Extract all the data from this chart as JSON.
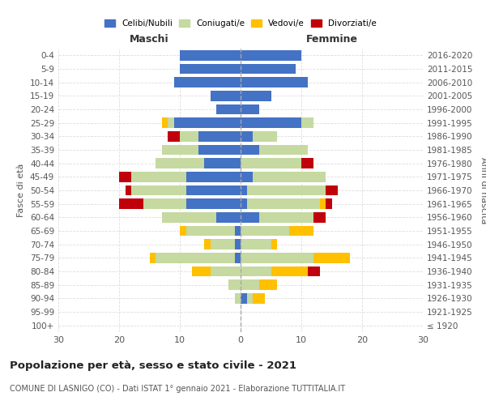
{
  "age_groups": [
    "100+",
    "95-99",
    "90-94",
    "85-89",
    "80-84",
    "75-79",
    "70-74",
    "65-69",
    "60-64",
    "55-59",
    "50-54",
    "45-49",
    "40-44",
    "35-39",
    "30-34",
    "25-29",
    "20-24",
    "15-19",
    "10-14",
    "5-9",
    "0-4"
  ],
  "birth_years": [
    "≤ 1920",
    "1921-1925",
    "1926-1930",
    "1931-1935",
    "1936-1940",
    "1941-1945",
    "1946-1950",
    "1951-1955",
    "1956-1960",
    "1961-1965",
    "1966-1970",
    "1971-1975",
    "1976-1980",
    "1981-1985",
    "1986-1990",
    "1991-1995",
    "1996-2000",
    "2001-2005",
    "2006-2010",
    "2011-2015",
    "2016-2020"
  ],
  "maschi": {
    "celibi": [
      0,
      0,
      0,
      0,
      0,
      1,
      1,
      1,
      4,
      9,
      9,
      9,
      6,
      7,
      7,
      11,
      4,
      5,
      11,
      10,
      10
    ],
    "coniugati": [
      0,
      0,
      1,
      2,
      5,
      13,
      4,
      8,
      9,
      7,
      9,
      9,
      8,
      6,
      3,
      1,
      0,
      0,
      0,
      0,
      0
    ],
    "vedovi": [
      0,
      0,
      0,
      0,
      3,
      1,
      1,
      1,
      0,
      0,
      0,
      0,
      0,
      0,
      0,
      1,
      0,
      0,
      0,
      0,
      0
    ],
    "divorziati": [
      0,
      0,
      0,
      0,
      0,
      0,
      0,
      0,
      0,
      4,
      1,
      2,
      0,
      0,
      2,
      0,
      0,
      0,
      0,
      0,
      0
    ]
  },
  "femmine": {
    "nubili": [
      0,
      0,
      1,
      0,
      0,
      0,
      0,
      0,
      3,
      1,
      1,
      2,
      0,
      3,
      2,
      10,
      3,
      5,
      11,
      9,
      10
    ],
    "coniugate": [
      0,
      0,
      1,
      3,
      5,
      12,
      5,
      8,
      9,
      12,
      13,
      12,
      10,
      8,
      4,
      2,
      0,
      0,
      0,
      0,
      0
    ],
    "vedove": [
      0,
      0,
      2,
      3,
      6,
      6,
      1,
      4,
      0,
      1,
      0,
      0,
      0,
      0,
      0,
      0,
      0,
      0,
      0,
      0,
      0
    ],
    "divorziate": [
      0,
      0,
      0,
      0,
      2,
      0,
      0,
      0,
      2,
      1,
      2,
      0,
      2,
      0,
      0,
      0,
      0,
      0,
      0,
      0,
      0
    ]
  },
  "colors": {
    "celibi_nubili": "#4472c4",
    "coniugati": "#c5d9a0",
    "vedovi": "#ffc000",
    "divorziati": "#c0000b"
  },
  "xlim": 30,
  "title": "Popolazione per età, sesso e stato civile - 2021",
  "subtitle": "COMUNE DI LASNIGO (CO) - Dati ISTAT 1° gennaio 2021 - Elaborazione TUTTITALIA.IT",
  "xlabel_left": "Maschi",
  "xlabel_right": "Femmine",
  "ylabel_left": "Fasce di età",
  "ylabel_right": "Anni di nascita",
  "legend_labels": [
    "Celibi/Nubili",
    "Coniugati/e",
    "Vedovi/e",
    "Divorziati/e"
  ]
}
